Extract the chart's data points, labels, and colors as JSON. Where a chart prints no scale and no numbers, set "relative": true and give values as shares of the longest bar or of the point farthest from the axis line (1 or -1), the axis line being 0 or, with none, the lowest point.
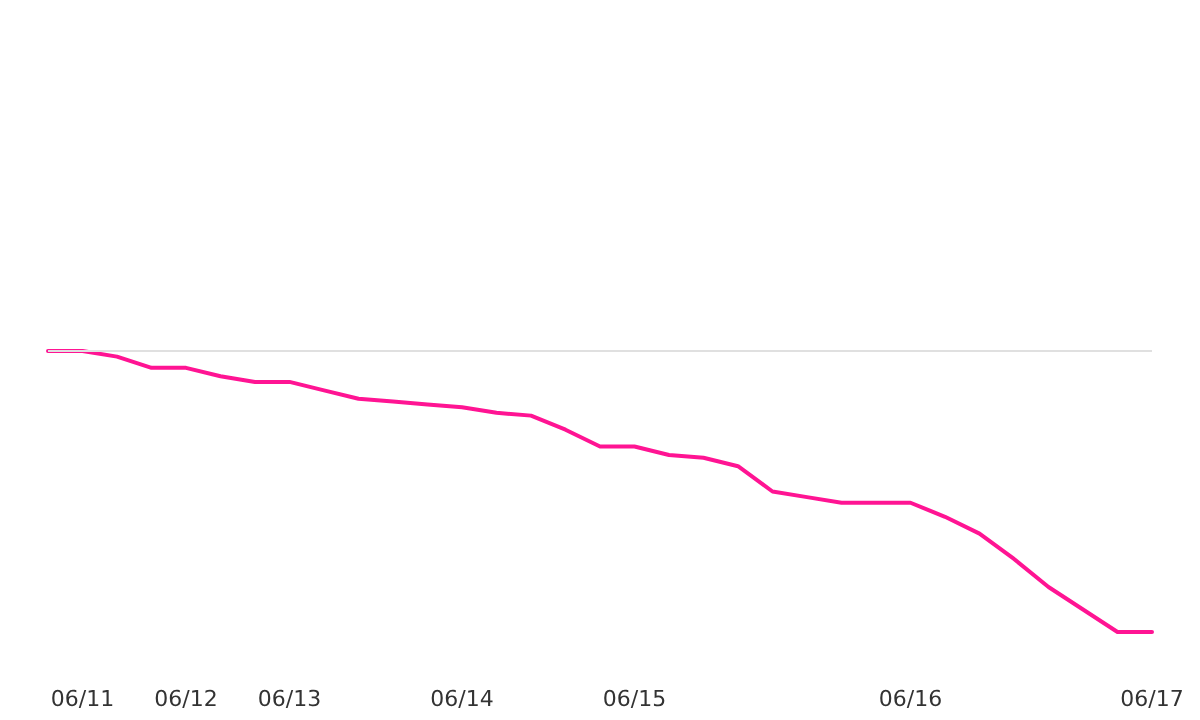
{
  "chart_data": {
    "type": "line",
    "relative": true,
    "categories": [
      null,
      "06/11",
      null,
      null,
      "06/12",
      null,
      null,
      "06/13",
      null,
      null,
      null,
      null,
      "06/14",
      null,
      null,
      null,
      null,
      "06/15",
      null,
      null,
      null,
      null,
      null,
      null,
      null,
      "06/16",
      null,
      null,
      null,
      null,
      null,
      null,
      "06/17"
    ],
    "series": [
      {
        "color": "#ff1493",
        "values": [
          1,
          1,
          0.98,
          0.94,
          0.94,
          0.91,
          0.89,
          0.89,
          0.86,
          0.83,
          0.82,
          0.81,
          0.8,
          0.78,
          0.77,
          0.72,
          0.66,
          0.66,
          0.63,
          0.62,
          0.59,
          0.5,
          0.48,
          0.46,
          0.46,
          0.46,
          0.41,
          0.35,
          0.26,
          0.16,
          0.08,
          0,
          0
        ]
      }
    ],
    "ref_lines": [
      {
        "axis": "y",
        "value": 1,
        "color": "#e0e0e0"
      }
    ],
    "marker": "none",
    "line_style": "solid",
    "grid": false
  }
}
